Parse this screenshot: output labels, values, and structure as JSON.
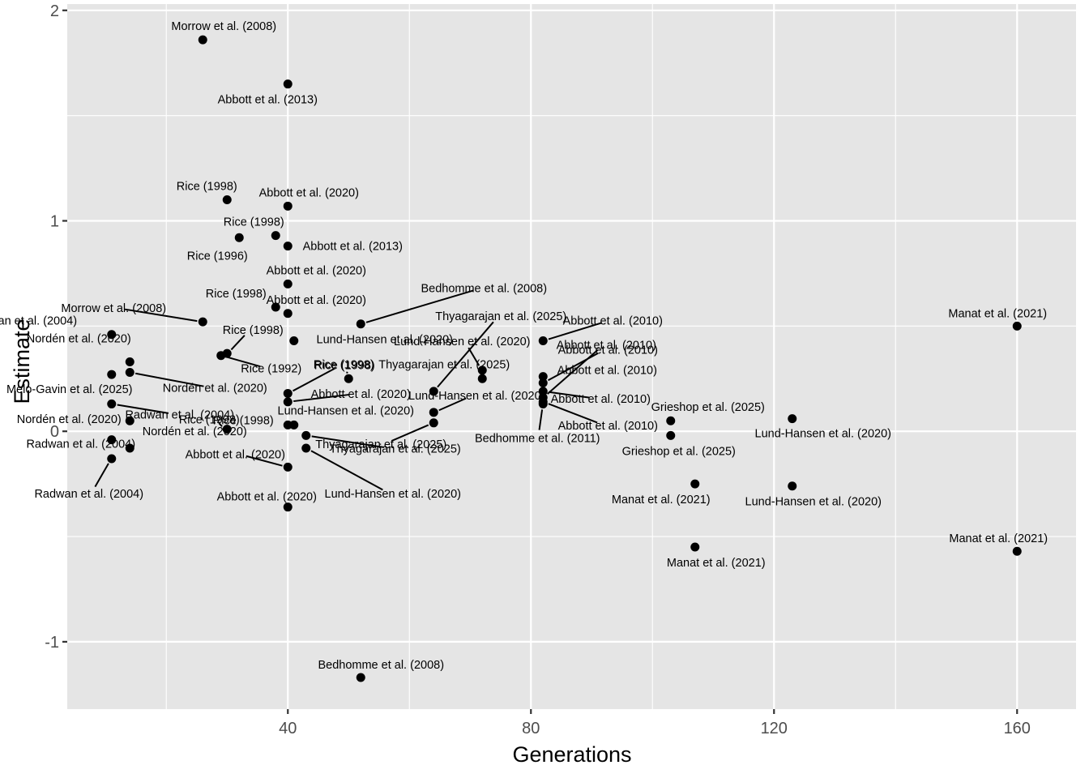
{
  "chart_data": {
    "type": "scatter",
    "title": "",
    "xlabel": "Generations",
    "ylabel": "Estimate",
    "xlim": [
      3.7,
      169.7
    ],
    "ylim": [
      -1.32,
      2.03
    ],
    "x_ticks": [
      40,
      80,
      120,
      160
    ],
    "x_tick_labels": [
      "40",
      "80",
      "120",
      "160"
    ],
    "y_ticks": [
      2,
      1,
      0,
      -1
    ],
    "y_tick_labels": [
      "2",
      "1",
      "0",
      "-1"
    ],
    "grid": true,
    "legend": "none",
    "colors": {
      "panel": "#e5e5e5",
      "grid": "#ffffff",
      "point": "#000000",
      "axis_text": "#4d4d4d"
    },
    "points": [
      {
        "x": 26,
        "y": 1.86,
        "label": "Morrow et al. (2008)"
      },
      {
        "x": 40,
        "y": 1.65,
        "label": "Abbott et al. (2013)"
      },
      {
        "x": 30,
        "y": 1.1,
        "label": "Rice (1998)"
      },
      {
        "x": 40,
        "y": 1.07,
        "label": "Abbott et al. (2020)"
      },
      {
        "x": 38,
        "y": 0.93,
        "label": "Rice (1998)"
      },
      {
        "x": 32,
        "y": 0.92,
        "label": "Rice (1996)"
      },
      {
        "x": 40,
        "y": 0.88,
        "label": "Abbott et al. (2013)"
      },
      {
        "x": 40,
        "y": 0.7,
        "label": "Abbott et al. (2020)"
      },
      {
        "x": 38,
        "y": 0.59,
        "label": "Rice (1998)"
      },
      {
        "x": 40,
        "y": 0.56,
        "label": "Abbott et al. (2020)"
      },
      {
        "x": 26,
        "y": 0.52,
        "label": "Morrow et al. (2008)"
      },
      {
        "x": 52,
        "y": 0.51,
        "label": "Bedhomme et al. (2008)"
      },
      {
        "x": 11,
        "y": 0.46,
        "label": "Radwan et al. (2004)"
      },
      {
        "x": 41,
        "y": 0.43,
        "label": "Lund-Hansen et al. (2020)"
      },
      {
        "x": 82,
        "y": 0.43,
        "label": "Abbott et al. (2010)"
      },
      {
        "x": 30,
        "y": 0.37,
        "label": "Rice (1998)"
      },
      {
        "x": 29,
        "y": 0.36,
        "label": "Rice (1992)"
      },
      {
        "x": 14,
        "y": 0.33,
        "label": "Nordén et al. (2020)"
      },
      {
        "x": 72,
        "y": 0.29,
        "label": "Lund-Hansen et al. (2020)"
      },
      {
        "x": 11,
        "y": 0.27,
        "label": "Melo-Gavin et al. (2025)"
      },
      {
        "x": 14,
        "y": 0.28,
        "label": "Nordén et al. (2020)"
      },
      {
        "x": 82,
        "y": 0.26,
        "label": "Abbott et al. (2010)"
      },
      {
        "x": 50,
        "y": 0.25,
        "label": "Rice (1998)"
      },
      {
        "x": 72,
        "y": 0.25,
        "label": "Thyagarajan et al. (2025)"
      },
      {
        "x": 82,
        "y": 0.23,
        "label": "Abbott et al. (2010)"
      },
      {
        "x": 64,
        "y": 0.19,
        "label": "Thyagarajan et al. (2025)"
      },
      {
        "x": 40,
        "y": 0.18,
        "label": "Rice (1998)"
      },
      {
        "x": 82,
        "y": 0.19,
        "label": "Abbott et al. (2010)"
      },
      {
        "x": 82,
        "y": 0.16,
        "label": "Abbott et al. (2010)"
      },
      {
        "x": 40,
        "y": 0.14,
        "label": "Abbott et al. (2020)"
      },
      {
        "x": 82,
        "y": 0.14,
        "label": "Abbott et al. (2010)"
      },
      {
        "x": 11,
        "y": 0.13,
        "label": "Radwan et al. (2004)"
      },
      {
        "x": 82,
        "y": 0.13,
        "label": "Bedhomme et al. (2011)"
      },
      {
        "x": 64,
        "y": 0.09,
        "label": "Lund-Hansen et al. (2020)"
      },
      {
        "x": 123,
        "y": 0.06,
        "label": "Lund-Hansen et al. (2020)"
      },
      {
        "x": 14,
        "y": 0.05,
        "label": "Nordén et al. (2020)"
      },
      {
        "x": 103,
        "y": 0.05,
        "label": "Grieshop et al. (2025)"
      },
      {
        "x": 64,
        "y": 0.04,
        "label": "Thyagarajan et al. (2025)"
      },
      {
        "x": 40,
        "y": 0.03,
        "label": "Rice (1998)"
      },
      {
        "x": 41,
        "y": 0.03,
        "label": "Lund-Hansen et al. (2020)"
      },
      {
        "x": 30,
        "y": 0.01,
        "label": "Rice (1998)"
      },
      {
        "x": 103,
        "y": -0.02,
        "label": "Grieshop et al. (2025)"
      },
      {
        "x": 43,
        "y": -0.02,
        "label": "Thyagarajan et al. (2025)"
      },
      {
        "x": 11,
        "y": -0.04,
        "label": "Radwan et al. (2004)"
      },
      {
        "x": 43,
        "y": -0.08,
        "label": "Lund-Hansen et al. (2020)"
      },
      {
        "x": 14,
        "y": -0.08,
        "label": "Nordén et al. (2020)"
      },
      {
        "x": 11,
        "y": -0.13,
        "label": "Radwan et al. (2004)"
      },
      {
        "x": 40,
        "y": -0.17,
        "label": "Abbott et al. (2020)"
      },
      {
        "x": 107,
        "y": -0.25,
        "label": "Manat et al. (2021)"
      },
      {
        "x": 123,
        "y": -0.26,
        "label": "Lund-Hansen et al. (2020)"
      },
      {
        "x": 40,
        "y": -0.36,
        "label": "Abbott et al. (2020)"
      },
      {
        "x": 107,
        "y": -0.55,
        "label": "Manat et al. (2021)"
      },
      {
        "x": 160,
        "y": 0.5,
        "label": "Manat et al. (2021)"
      },
      {
        "x": 160,
        "y": -0.57,
        "label": "Manat et al. (2021)"
      },
      {
        "x": 52,
        "y": -1.17,
        "label": "Bedhomme et al. (2008)"
      }
    ]
  }
}
